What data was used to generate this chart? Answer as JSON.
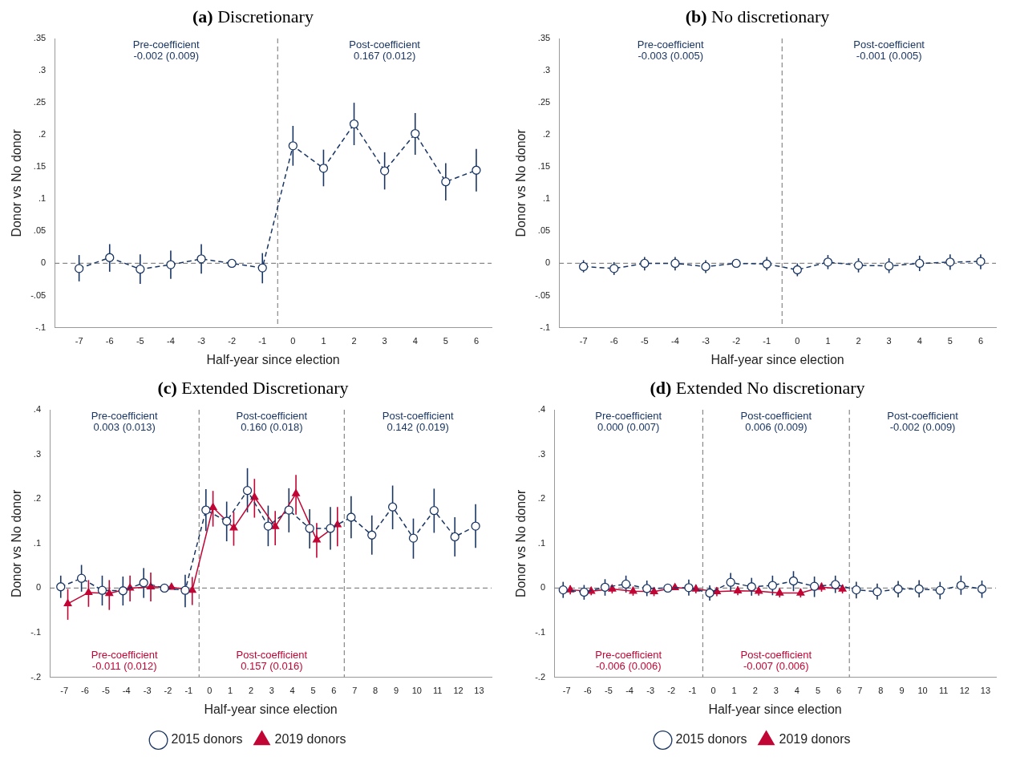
{
  "chart_data": [
    {
      "type": "line",
      "title": "(a) Discretionary",
      "xlabel": "Half-year since election",
      "ylabel": "Donor vs No donor",
      "annotations": [
        "Pre-coefficient\n-0.002 (0.009)",
        "Post-coefficient\n0.167 (0.012)"
      ],
      "xlim": [
        -7.8,
        6.5
      ],
      "xticks": [
        -7,
        -6,
        -5,
        -4,
        -3,
        -2,
        -1,
        0,
        1,
        2,
        3,
        4,
        5,
        6
      ],
      "ylim": [
        -0.1,
        0.35
      ],
      "yticks": [
        {
          "value": -0.1,
          "label": "-.1"
        },
        {
          "value": -0.05,
          "label": "-.05"
        },
        {
          "value": 0,
          "label": "0"
        },
        {
          "value": 0.05,
          "label": ".05"
        },
        {
          "value": 0.1,
          "label": ".1"
        },
        {
          "value": 0.15,
          "label": ".15"
        },
        {
          "value": 0.2,
          "label": ".2"
        },
        {
          "value": 0.25,
          "label": ".25"
        },
        {
          "value": 0.3,
          "label": ".3"
        },
        {
          "value": 0.35,
          "label": ".35"
        }
      ],
      "ref_lines": [
        {
          "axis": "x",
          "value": -0.5,
          "color": "#888888",
          "line_style": "dashed"
        },
        {
          "axis": "y",
          "value": 0,
          "color": "#888888",
          "line_style": "dashed"
        }
      ],
      "legend": false,
      "series": [
        {
          "color": "#1a3664",
          "marker": "circle",
          "line_style": "dashed",
          "x": [
            -7,
            -6,
            -5,
            -4,
            -3,
            -2,
            -1,
            0,
            1,
            2,
            3,
            4,
            5,
            6
          ],
          "values": [
            -0.008,
            0.009,
            -0.009,
            -0.002,
            0.007,
            0,
            -0.007,
            0.183,
            0.148,
            0.217,
            0.144,
            0.202,
            0.127,
            0.145
          ],
          "errors": [
            [
              -0.028,
              0.013
            ],
            [
              -0.013,
              0.03
            ],
            [
              -0.032,
              0.014
            ],
            [
              -0.024,
              0.02
            ],
            [
              -0.016,
              0.03
            ],
            null,
            [
              -0.031,
              0.016
            ],
            [
              0.152,
              0.214
            ],
            [
              0.12,
              0.177
            ],
            [
              0.184,
              0.25
            ],
            [
              0.115,
              0.173
            ],
            [
              0.169,
              0.234
            ],
            [
              0.098,
              0.156
            ],
            [
              0.112,
              0.178
            ]
          ]
        }
      ]
    },
    {
      "type": "line",
      "title": "(b) No discretionary",
      "xlabel": "Half-year since election",
      "ylabel": "Donor vs No donor",
      "annotations": [
        "Pre-coefficient\n-0.003 (0.005)",
        "Post-coefficient\n-0.001 (0.005)"
      ],
      "xlim": [
        -7.8,
        6.5
      ],
      "xticks": [
        -7,
        -6,
        -5,
        -4,
        -3,
        -2,
        -1,
        0,
        1,
        2,
        3,
        4,
        5,
        6
      ],
      "ylim": [
        -0.1,
        0.35
      ],
      "yticks": [
        {
          "value": -0.1,
          "label": "-.1"
        },
        {
          "value": -0.05,
          "label": "-.05"
        },
        {
          "value": 0,
          "label": "0"
        },
        {
          "value": 0.05,
          "label": ".05"
        },
        {
          "value": 0.1,
          "label": ".1"
        },
        {
          "value": 0.15,
          "label": ".15"
        },
        {
          "value": 0.2,
          "label": ".2"
        },
        {
          "value": 0.25,
          "label": ".25"
        },
        {
          "value": 0.3,
          "label": ".3"
        },
        {
          "value": 0.35,
          "label": ".35"
        }
      ],
      "ref_lines": [
        {
          "axis": "x",
          "value": -0.5,
          "color": "#888888",
          "line_style": "dashed"
        },
        {
          "axis": "y",
          "value": 0,
          "color": "#888888",
          "line_style": "dashed"
        }
      ],
      "legend": false,
      "series": [
        {
          "color": "#1a3664",
          "marker": "circle",
          "line_style": "dashed",
          "x": [
            -7,
            -6,
            -5,
            -4,
            -3,
            -2,
            -1,
            0,
            1,
            2,
            3,
            4,
            5,
            6
          ],
          "values": [
            -0.005,
            -0.008,
            0,
            0,
            -0.005,
            0,
            -0.001,
            -0.01,
            0.002,
            -0.003,
            -0.004,
            0,
            0.002,
            0.003
          ],
          "errors": [
            [
              -0.014,
              0.005
            ],
            [
              -0.018,
              0.002
            ],
            [
              -0.011,
              0.01
            ],
            [
              -0.011,
              0.01
            ],
            [
              -0.015,
              0.005
            ],
            null,
            [
              -0.011,
              0.01
            ],
            [
              -0.02,
              0
            ],
            [
              -0.009,
              0.013
            ],
            [
              -0.014,
              0.008
            ],
            [
              -0.015,
              0.008
            ],
            [
              -0.012,
              0.012
            ],
            [
              -0.01,
              0.014
            ],
            [
              -0.009,
              0.014
            ]
          ]
        }
      ]
    },
    {
      "type": "line",
      "title": "(c) Extended Discretionary",
      "xlabel": "Half-year since election",
      "ylabel": "Donor vs No donor",
      "annotations": [
        "Pre-coefficient\n0.003 (0.013)",
        "Post-coefficient\n0.160 (0.018)",
        "Post-coefficient\n0.142 (0.019)",
        "Pre-coefficient\n-0.011 (0.012)",
        "Post-coefficient\n0.157 (0.016)"
      ],
      "xlim": [
        -7.7,
        13.6
      ],
      "xticks": [
        -7,
        -6,
        -5,
        -4,
        -3,
        -2,
        -1,
        0,
        1,
        2,
        3,
        4,
        5,
        6,
        7,
        8,
        9,
        10,
        11,
        12,
        13
      ],
      "ylim": [
        -0.2,
        0.4
      ],
      "yticks": [
        {
          "value": -0.2,
          "label": "-.2"
        },
        {
          "value": -0.1,
          "label": "-.1"
        },
        {
          "value": 0,
          "label": "0"
        },
        {
          "value": 0.1,
          "label": ".1"
        },
        {
          "value": 0.2,
          "label": ".2"
        },
        {
          "value": 0.3,
          "label": ".3"
        },
        {
          "value": 0.4,
          "label": ".4"
        }
      ],
      "ref_lines": [
        {
          "axis": "x",
          "value": -0.5,
          "color": "#888888",
          "line_style": "dashed"
        },
        {
          "axis": "x",
          "value": 6.5,
          "color": "#888888",
          "line_style": "dashed"
        },
        {
          "axis": "y",
          "value": 0,
          "color": "#888888",
          "line_style": "dashed"
        }
      ],
      "legend": "bottom",
      "series": [
        {
          "name": "2015 donors",
          "color": "#1a3664",
          "marker": "circle",
          "line_style": "dashed",
          "x": [
            -7.17,
            -6.17,
            -5.17,
            -4.17,
            -3.17,
            -2.17,
            -1.17,
            -0.17,
            0.83,
            1.83,
            2.83,
            3.83,
            4.83,
            5.83,
            6.83,
            7.83,
            8.83,
            9.83,
            10.83,
            11.83,
            12.83
          ],
          "values": [
            0.003,
            0.022,
            -0.005,
            -0.006,
            0.012,
            0,
            -0.005,
            0.175,
            0.15,
            0.219,
            0.139,
            0.175,
            0.134,
            0.134,
            0.159,
            0.119,
            0.182,
            0.112,
            0.174,
            0.115,
            0.139
          ],
          "errors": [
            [
              -0.022,
              0.028
            ],
            [
              -0.008,
              0.052
            ],
            [
              -0.039,
              0.028
            ],
            [
              -0.039,
              0.026
            ],
            [
              -0.022,
              0.045
            ],
            null,
            [
              -0.043,
              0.03
            ],
            [
              0.128,
              0.222
            ],
            [
              0.105,
              0.194
            ],
            [
              0.17,
              0.269
            ],
            [
              0.094,
              0.185
            ],
            [
              0.125,
              0.224
            ],
            [
              0.089,
              0.177
            ],
            [
              0.086,
              0.182
            ],
            [
              0.112,
              0.206
            ],
            [
              0.075,
              0.163
            ],
            [
              0.132,
              0.23
            ],
            [
              0.066,
              0.156
            ],
            [
              0.124,
              0.223
            ],
            [
              0.071,
              0.159
            ],
            [
              0.09,
              0.188
            ]
          ]
        },
        {
          "name": "2019 donors",
          "color": "#c10534",
          "marker": "triangle",
          "line_style": "solid",
          "x": [
            -6.83,
            -5.83,
            -4.83,
            -3.83,
            -2.83,
            -1.83,
            -0.83,
            0.17,
            1.17,
            2.17,
            3.17,
            4.17,
            5.17,
            6.17
          ],
          "values": [
            -0.035,
            -0.01,
            -0.012,
            0,
            0.003,
            0.002,
            -0.005,
            0.181,
            0.135,
            0.204,
            0.138,
            0.212,
            0.108,
            0.142
          ],
          "errors": [
            [
              -0.071,
              -0.002
            ],
            [
              -0.042,
              0.018
            ],
            [
              -0.049,
              0.018
            ],
            [
              -0.03,
              0.028
            ],
            [
              -0.03,
              0.035
            ],
            null,
            [
              -0.038,
              0.025
            ],
            [
              0.138,
              0.218
            ],
            [
              0.095,
              0.171
            ],
            [
              0.158,
              0.245
            ],
            [
              0.096,
              0.173
            ],
            [
              0.165,
              0.254
            ],
            [
              0.068,
              0.146
            ],
            [
              0.094,
              0.182
            ]
          ]
        }
      ]
    },
    {
      "type": "line",
      "title": "(d) Extended No discretionary",
      "xlabel": "Half-year since election",
      "ylabel": "Donor vs No donor",
      "annotations": [
        "Pre-coefficient\n0.000 (0.007)",
        "Post-coefficient\n0.006 (0.009)",
        "Post-coefficient\n-0.002 (0.009)",
        "Pre-coefficient\n-0.006 (0.006)",
        "Post-coefficient\n-0.007 (0.006)"
      ],
      "xlim": [
        -7.6,
        13.5
      ],
      "xticks": [
        -7,
        -6,
        -5,
        -4,
        -3,
        -2,
        -1,
        0,
        1,
        2,
        3,
        4,
        5,
        6,
        7,
        8,
        9,
        10,
        11,
        12,
        13
      ],
      "ylim": [
        -0.2,
        0.4
      ],
      "yticks": [
        {
          "value": -0.2,
          "label": "-.2"
        },
        {
          "value": -0.1,
          "label": "-.1"
        },
        {
          "value": 0,
          "label": "0"
        },
        {
          "value": 0.1,
          "label": ".1"
        },
        {
          "value": 0.2,
          "label": ".2"
        },
        {
          "value": 0.3,
          "label": ".3"
        },
        {
          "value": 0.4,
          "label": ".4"
        }
      ],
      "ref_lines": [
        {
          "axis": "x",
          "value": -0.5,
          "color": "#888888",
          "line_style": "dashed"
        },
        {
          "axis": "x",
          "value": 6.5,
          "color": "#888888",
          "line_style": "dashed"
        },
        {
          "axis": "y",
          "value": 0,
          "color": "#888888",
          "line_style": "dashed"
        }
      ],
      "legend": "bottom",
      "series": [
        {
          "name": "2015 donors",
          "color": "#1a3664",
          "marker": "circle",
          "line_style": "dashed",
          "x": [
            -7.17,
            -6.17,
            -5.17,
            -4.17,
            -3.17,
            -2.17,
            -1.17,
            -0.17,
            0.83,
            1.83,
            2.83,
            3.83,
            4.83,
            5.83,
            6.83,
            7.83,
            8.83,
            9.83,
            10.83,
            11.83,
            12.83
          ],
          "values": [
            -0.004,
            -0.009,
            0.002,
            0.009,
            -0.001,
            0,
            0.001,
            -0.011,
            0.013,
            0.003,
            0.006,
            0.016,
            0.004,
            0.008,
            -0.004,
            -0.008,
            -0.002,
            -0.002,
            -0.005,
            0.006,
            -0.002
          ],
          "errors": [
            [
              -0.022,
              0.014
            ],
            [
              -0.026,
              0.007
            ],
            [
              -0.017,
              0.02
            ],
            [
              -0.01,
              0.028
            ],
            [
              -0.018,
              0.017
            ],
            null,
            [
              -0.017,
              0.019
            ],
            [
              -0.028,
              0.006
            ],
            [
              -0.008,
              0.034
            ],
            [
              -0.017,
              0.023
            ],
            [
              -0.016,
              0.028
            ],
            [
              -0.007,
              0.038
            ],
            [
              -0.02,
              0.026
            ],
            [
              -0.011,
              0.028
            ],
            [
              -0.023,
              0.014
            ],
            [
              -0.026,
              0.01
            ],
            [
              -0.021,
              0.016
            ],
            [
              -0.021,
              0.018
            ],
            [
              -0.025,
              0.014
            ],
            [
              -0.015,
              0.028
            ],
            [
              -0.022,
              0.017
            ]
          ]
        },
        {
          "name": "2019 donors",
          "color": "#c10534",
          "marker": "triangle",
          "line_style": "solid",
          "x": [
            -6.83,
            -5.83,
            -4.83,
            -3.83,
            -2.83,
            -1.83,
            -0.83,
            0.17,
            1.17,
            2.17,
            3.17,
            4.17,
            5.17,
            6.17
          ],
          "values": [
            -0.004,
            -0.007,
            -0.002,
            -0.007,
            -0.008,
            0.001,
            -0.002,
            -0.008,
            -0.006,
            -0.007,
            -0.011,
            -0.011,
            0.002,
            -0.002
          ],
          "errors": [
            [
              -0.014,
              0.006
            ],
            [
              -0.016,
              0.003
            ],
            [
              -0.012,
              0.008
            ],
            [
              -0.017,
              0.003
            ],
            [
              -0.018,
              0.002
            ],
            null,
            [
              -0.012,
              0.008
            ],
            [
              -0.018,
              0.002
            ],
            [
              -0.016,
              0.004
            ],
            [
              -0.017,
              0.003
            ],
            [
              -0.021,
              -0.001
            ],
            [
              -0.021,
              -0.001
            ],
            [
              -0.008,
              0.012
            ],
            [
              -0.012,
              0.008
            ]
          ]
        }
      ]
    }
  ]
}
